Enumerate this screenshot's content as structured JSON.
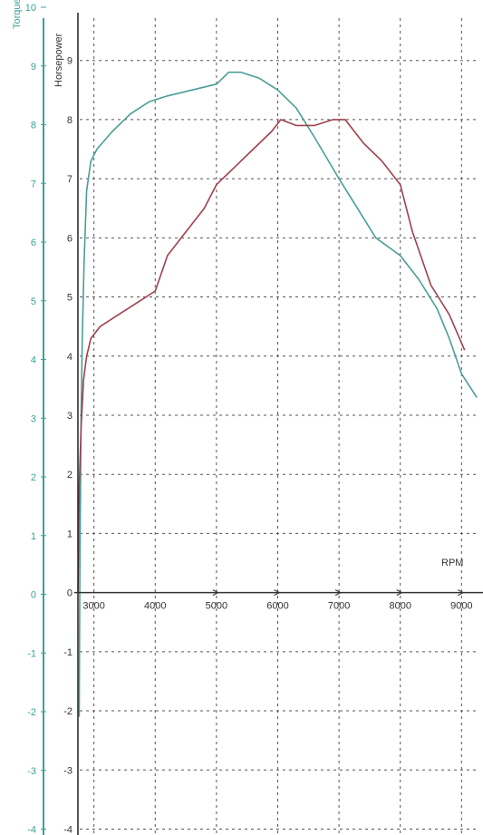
{
  "chart_data": {
    "type": "line",
    "xlabel": "RPM",
    "ylabel_left": "Torque",
    "ylabel_right": "Horsepower",
    "xlim": [
      2650,
      9350
    ],
    "ylim": [
      -4.1,
      9.9
    ],
    "torque_ylim": [
      -4.1,
      10.0
    ],
    "x_ticks": [
      3000,
      4000,
      5000,
      6000,
      7000,
      8000,
      9000
    ],
    "x_tick_labels": [
      "3000",
      "4000",
      "5000",
      "6000",
      "7000",
      "8000",
      "9000"
    ],
    "hp_ticks": [
      -4,
      -3,
      -2,
      -1,
      0,
      1,
      2,
      3,
      4,
      5,
      6,
      7,
      8,
      9
    ],
    "hp_tick_labels": [
      "-4",
      "-3",
      "-2",
      "-1",
      "0",
      "1",
      "2",
      "3",
      "4",
      "5",
      "6",
      "7",
      "8",
      "9"
    ],
    "torque_ticks": [
      -4,
      -3,
      -2,
      -1,
      0,
      1,
      2,
      3,
      4,
      5,
      6,
      7,
      8,
      9,
      10
    ],
    "torque_tick_labels": [
      "-4",
      "-3",
      "-2",
      "-1",
      "0",
      "1",
      "2",
      "3",
      "4",
      "5",
      "6",
      "7",
      "8",
      "9",
      "10"
    ],
    "grid": true,
    "series": [
      {
        "color": "#4a9e96",
        "x": [
          2760,
          2770,
          2790,
          2810,
          2840,
          2880,
          2950,
          3050,
          3300,
          3600,
          3900,
          4200,
          4600,
          5000,
          5200,
          5400,
          5700,
          6000,
          6300,
          6600,
          7000,
          7300,
          7600,
          8000,
          8300,
          8600,
          8800,
          9000,
          9250
        ],
        "y": [
          -2.1,
          0.3,
          3.0,
          4.3,
          5.6,
          6.8,
          7.3,
          7.5,
          7.8,
          8.1,
          8.3,
          8.4,
          8.5,
          8.6,
          8.8,
          8.8,
          8.7,
          8.5,
          8.2,
          7.7,
          7.0,
          6.5,
          6.0,
          5.7,
          5.3,
          4.8,
          4.3,
          3.7,
          3.3
        ]
      },
      {
        "color": "#a0404e",
        "x": [
          2740,
          2760,
          2790,
          2830,
          2880,
          2950,
          3100,
          3400,
          3700,
          4000,
          4200,
          4500,
          4800,
          5000,
          5300,
          5600,
          5900,
          6050,
          6300,
          6600,
          6900,
          7100,
          7400,
          7700,
          8000,
          8200,
          8500,
          8800,
          9050
        ],
        "y": [
          0.0,
          1.8,
          2.8,
          3.6,
          4.0,
          4.3,
          4.5,
          4.7,
          4.9,
          5.1,
          5.7,
          6.1,
          6.5,
          6.9,
          7.2,
          7.5,
          7.8,
          8.0,
          7.9,
          7.9,
          8.0,
          8.0,
          7.6,
          7.3,
          6.9,
          6.1,
          5.2,
          4.7,
          4.1
        ]
      }
    ]
  }
}
